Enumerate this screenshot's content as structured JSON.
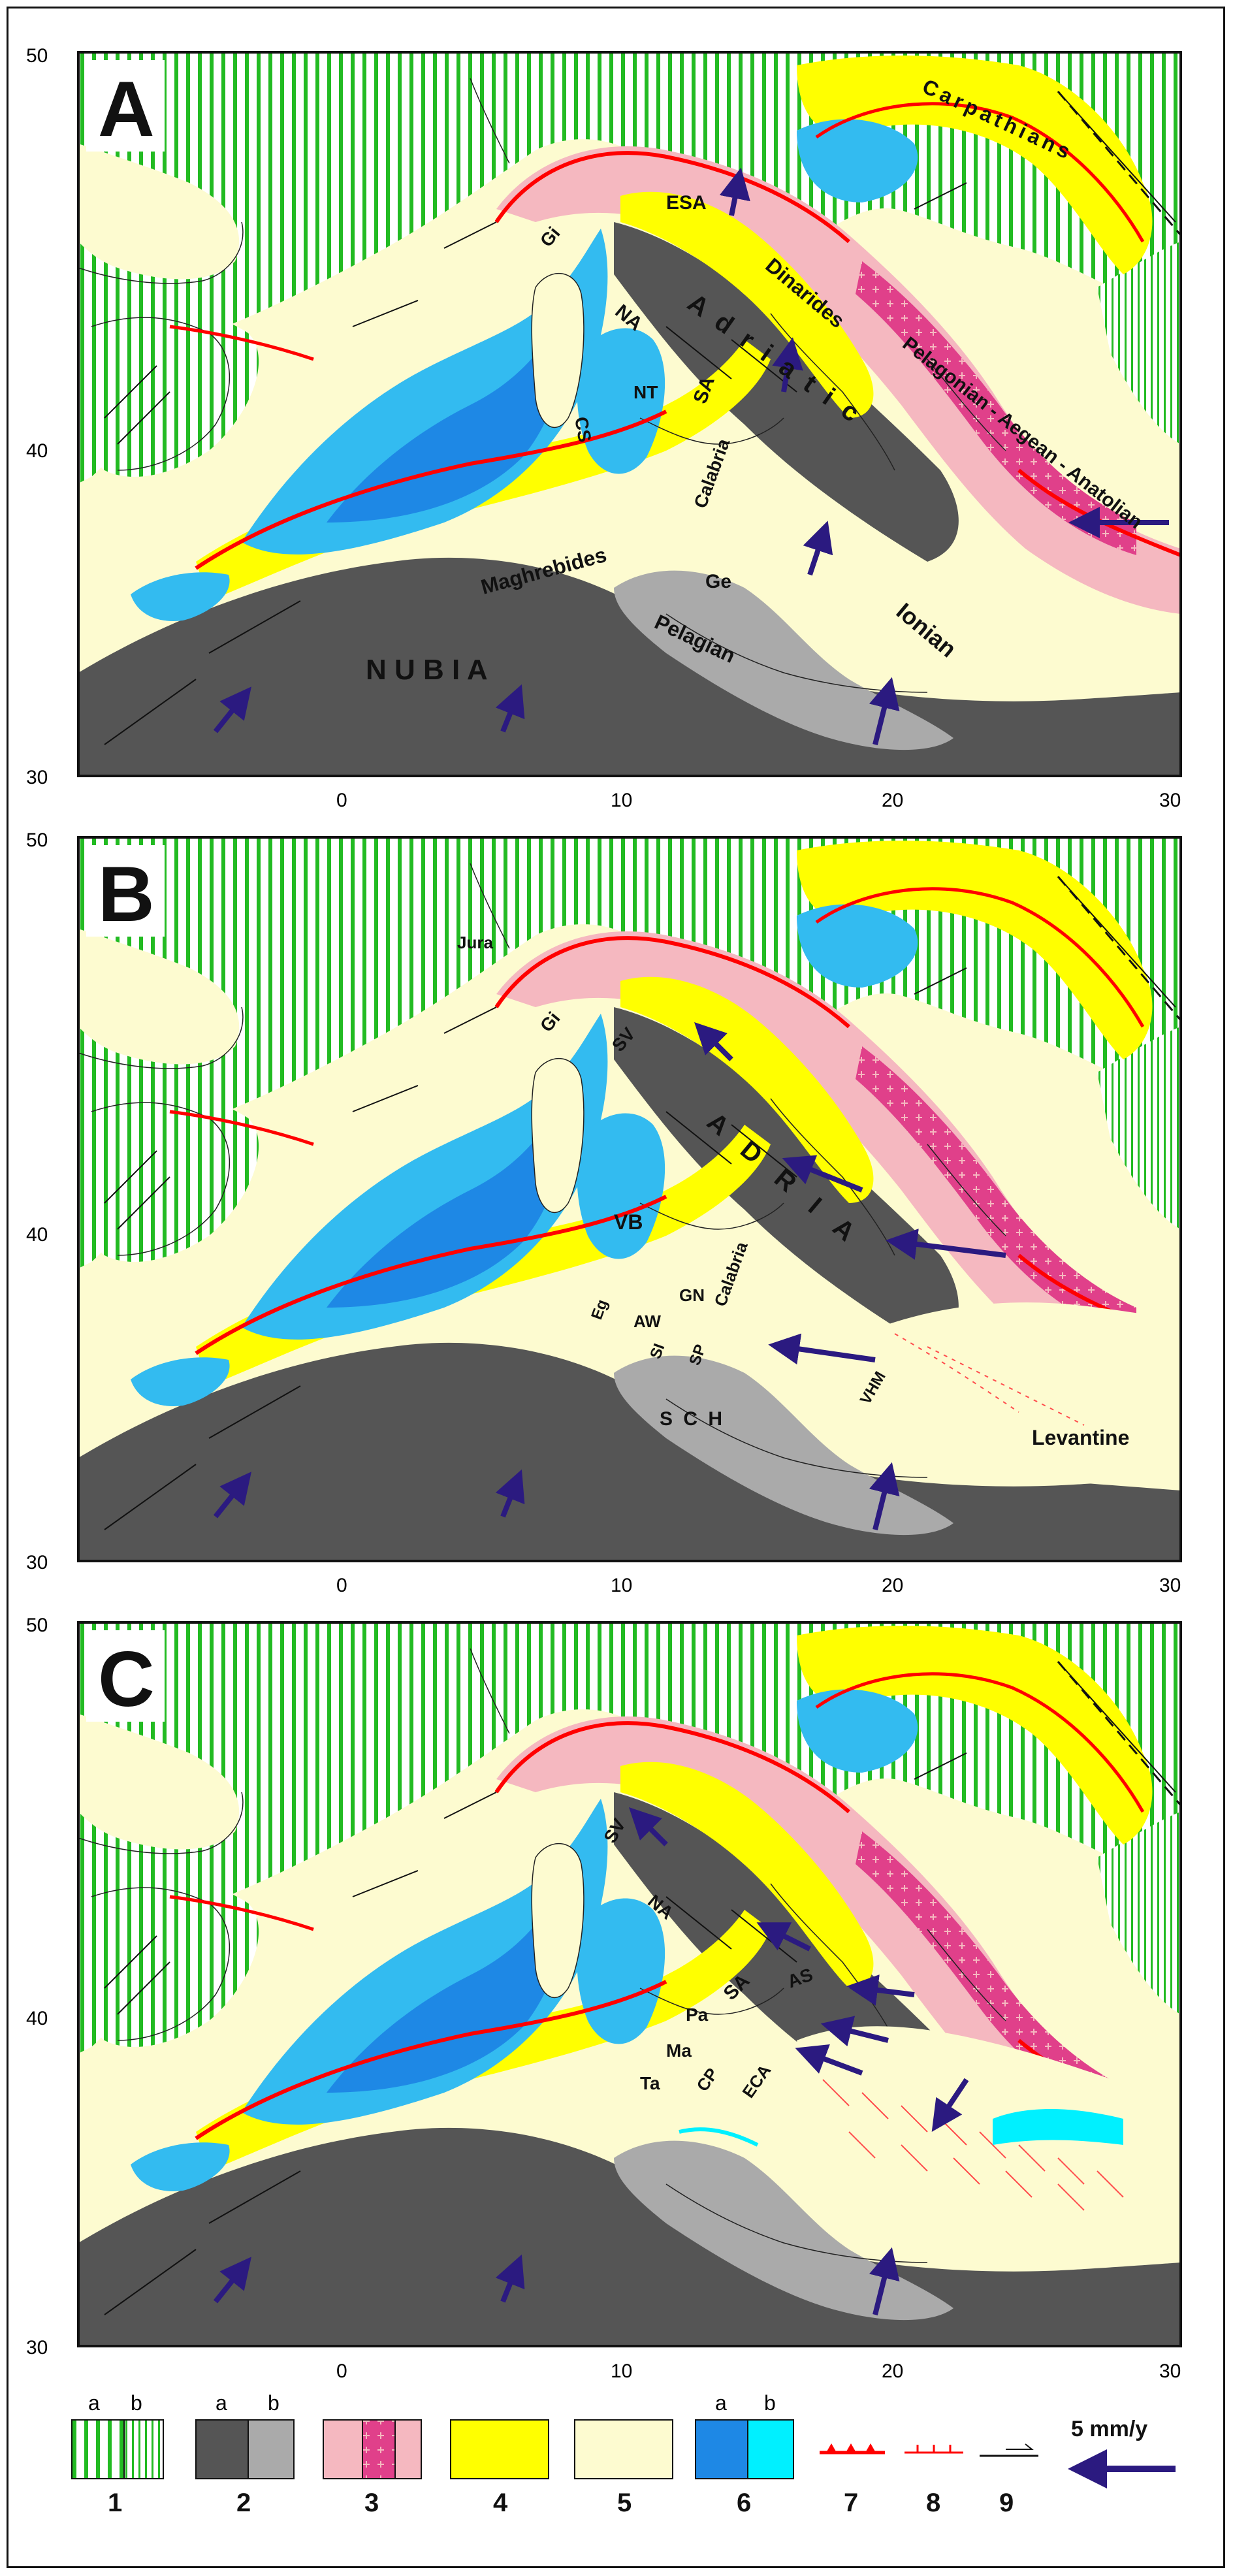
{
  "panels": [
    {
      "id": "A",
      "letter": "A",
      "lat_ticks": [
        "50",
        "40",
        "30"
      ],
      "lon_ticks": [
        "0",
        "10",
        "20",
        "30"
      ],
      "labels": {
        "carpathians": "Carpathians",
        "dinarides": "Dinarides",
        "adriatic": "A d r i a t i c",
        "pelagonian": "Pelagonian - Aegean - Anatolian",
        "nubia": "N U B I A",
        "ionian": "Ionian",
        "pelagian": "Pelagian",
        "ge": "Ge",
        "maghrebides": "Maghrebides",
        "calabria": "Calabria",
        "sa": "SA",
        "na": "NA",
        "nt": "NT",
        "cs": "CS",
        "esa": "ESA",
        "gi": "Gi"
      }
    },
    {
      "id": "B",
      "letter": "B",
      "lat_ticks": [
        "50",
        "40",
        "30"
      ],
      "lon_ticks": [
        "0",
        "10",
        "20",
        "30"
      ],
      "labels": {
        "jura": "Jura",
        "gi": "Gi",
        "sv": "SV",
        "adria": "A D R I A",
        "vb": "VB",
        "calabria": "Calabria",
        "gn": "GN",
        "aw": "AW",
        "si": "SI",
        "sp": "SP",
        "eg": "Eg",
        "sch": "S C H",
        "vhm": "VHM",
        "levantine": "Levantine"
      }
    },
    {
      "id": "C",
      "letter": "C",
      "lat_ticks": [
        "50",
        "40",
        "30"
      ],
      "lon_ticks": [
        "0",
        "10",
        "20",
        "30"
      ],
      "labels": {
        "sv": "SV",
        "na": "NA",
        "sa": "SA",
        "as": "AS",
        "pa": "Pa",
        "ma": "Ma",
        "ta": "Ta",
        "cp": "CP",
        "eca": "ECA"
      }
    }
  ],
  "legend": {
    "items": [
      {
        "number": "1",
        "sub": [
          "a",
          "b"
        ]
      },
      {
        "number": "2",
        "sub": [
          "a",
          "b"
        ]
      },
      {
        "number": "3",
        "sub": []
      },
      {
        "number": "4",
        "sub": []
      },
      {
        "number": "5",
        "sub": []
      },
      {
        "number": "6",
        "sub": [
          "a",
          "b"
        ]
      },
      {
        "number": "7",
        "sub": []
      },
      {
        "number": "8",
        "sub": []
      },
      {
        "number": "9",
        "sub": []
      }
    ],
    "velocity_label": "5 mm/y"
  },
  "colors": {
    "continent_green": "#22bb22",
    "nubia_dark": "#555555",
    "pelagian_gray": "#aaaaaa",
    "orogen_pink": "#f5b8c0",
    "pelagonian_magenta": "#e0408a",
    "flysch_yellow": "#ffff00",
    "basin_cream": "#fdfbd0",
    "ocean_blue": "#33bbf0",
    "ocean_deep": "#1e88e5",
    "ocean_cyan": "#00f0ff",
    "thrust_red": "#ff0000",
    "arrow_navy": "#2b1a80"
  }
}
